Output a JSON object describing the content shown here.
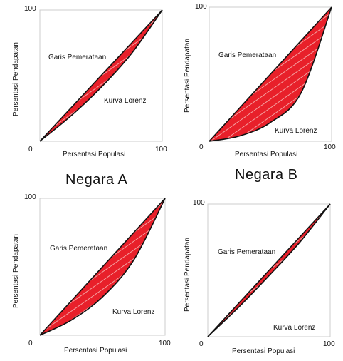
{
  "titles": {
    "a": "Negara A",
    "b": "Negara B"
  },
  "labels": {
    "equality_line": "Garis Pemerataan",
    "lorenz_curve": "Kurva Lorenz",
    "x_axis": "Persentasi Populasi",
    "y_axis": "Persentasi Pendapatan",
    "origin": "0",
    "max": "100"
  },
  "colors": {
    "fill": "#e8202a",
    "hatch": "#f4a0a0",
    "line": "#111111",
    "frame": "#cccccc"
  },
  "chart_data": [
    {
      "type": "line",
      "x": [
        0,
        25,
        50,
        75,
        100
      ],
      "series": [
        {
          "values": [
            0,
            25,
            50,
            75,
            100
          ]
        },
        {
          "values": [
            0,
            19,
            41,
            67,
            100
          ]
        }
      ]
    },
    {
      "type": "line",
      "x": [
        0,
        25,
        50,
        75,
        100
      ],
      "series": [
        {
          "values": [
            0,
            25,
            50,
            75,
            100
          ]
        },
        {
          "values": [
            0,
            4,
            14,
            36,
            100
          ]
        }
      ]
    },
    {
      "type": "line",
      "x": [
        0,
        25,
        50,
        75,
        100
      ],
      "series": [
        {
          "values": [
            0,
            25,
            50,
            75,
            100
          ]
        },
        {
          "values": [
            0,
            11,
            28,
            55,
            100
          ]
        }
      ]
    },
    {
      "type": "line",
      "x": [
        0,
        25,
        50,
        75,
        100
      ],
      "series": [
        {
          "values": [
            0,
            25,
            50,
            75,
            100
          ]
        },
        {
          "values": [
            0,
            22,
            46,
            71,
            100
          ]
        }
      ]
    }
  ]
}
